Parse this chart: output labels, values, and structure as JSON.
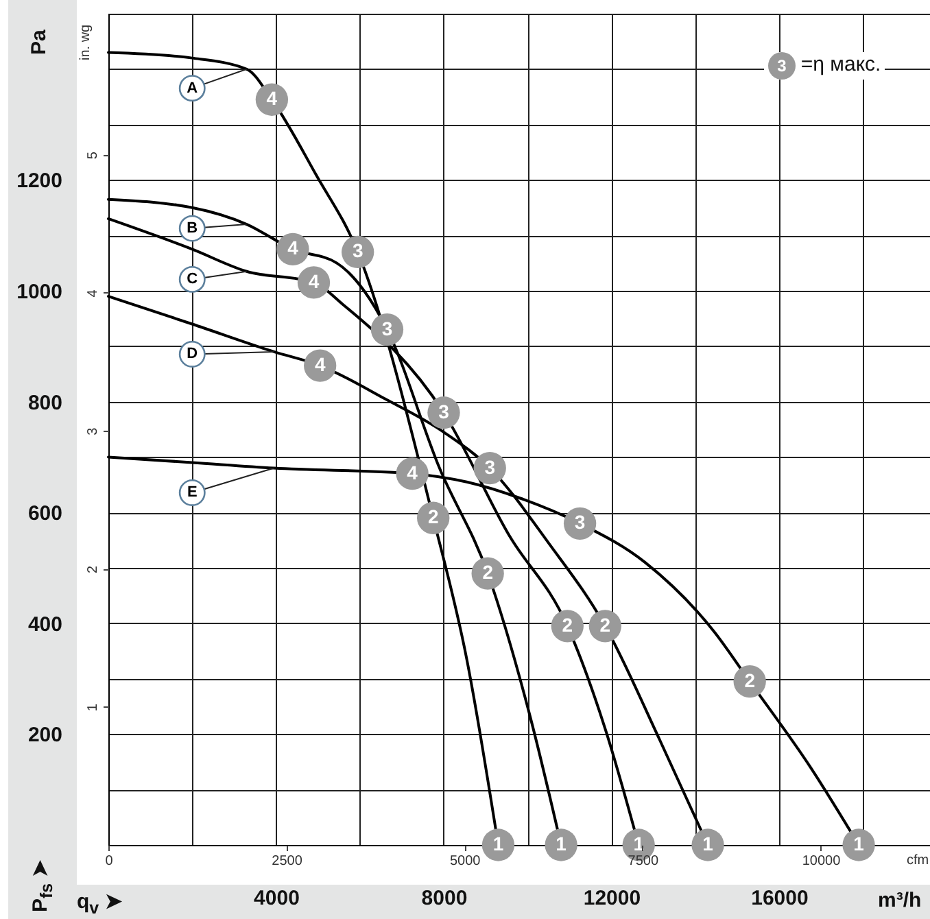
{
  "chart_data": {
    "type": "line",
    "xlabel": "q$_{v}$ ➤",
    "ylabel": "P$_{fs}$ ➤",
    "x2label": "cfm",
    "y2label": "in. wg",
    "xlim": [
      0,
      19600
    ],
    "ylim": [
      0,
      1500
    ],
    "x2lim": [
      0,
      11536
    ],
    "y2lim": [
      0,
      6.022
    ],
    "xticks": [
      {
        "value": 0,
        "label": null
      },
      {
        "value": 2000,
        "label": null
      },
      4000,
      {
        "value": 6000,
        "label": null
      },
      8000,
      {
        "value": 10000,
        "label": null
      },
      12000,
      {
        "value": 14000,
        "label": null
      },
      16000,
      {
        "value": 18000,
        "label": null
      }
    ],
    "yticks": [
      {
        "value": 0,
        "label": null
      },
      {
        "value": 100,
        "label": null
      },
      200,
      {
        "value": 300,
        "label": null
      },
      400,
      {
        "value": 500,
        "label": null
      },
      600,
      {
        "value": 700,
        "label": null
      },
      800,
      {
        "value": 900,
        "label": null
      },
      1000,
      {
        "value": 1100,
        "label": null
      },
      1200,
      {
        "value": 1300,
        "label": null
      },
      {
        "value": 1400,
        "label": null
      },
      {
        "value": 1500,
        "label": null
      }
    ],
    "x2ticks": [
      0,
      2500,
      5000,
      7500,
      10000
    ],
    "y2ticks": [
      1,
      2,
      3,
      4,
      5
    ],
    "grid": true,
    "marker": "none",
    "line_style": "solid",
    "series": [
      {
        "name": "A",
        "color": "#000000",
        "x": [
          0,
          2000,
          3300,
          3900,
          4950,
          5950,
          7750,
          8550,
          9300
        ],
        "values": [
          1430,
          1420,
          1400,
          1345,
          1210,
          1070,
          590,
          335,
          0
        ]
      },
      {
        "name": "B",
        "color": "#000000",
        "x": [
          0,
          2000,
          3300,
          4400,
          5450,
          6100,
          6650,
          7900,
          9050,
          10050,
          10800
        ],
        "values": [
          1165,
          1150,
          1120,
          1075,
          1050,
          1000,
          930,
          680,
          490,
          235,
          0
        ]
      },
      {
        "name": "C",
        "color": "#000000",
        "x": [
          0,
          2000,
          3300,
          4900,
          5600,
          8000,
          9550,
          10950,
          11850,
          12650
        ],
        "values": [
          1130,
          1075,
          1035,
          1015,
          975,
          780,
          560,
          395,
          210,
          0
        ]
      },
      {
        "name": "D",
        "color": "#000000",
        "x": [
          0,
          2000,
          3950,
          5050,
          6600,
          8000,
          9100,
          10500,
          11850,
          13150,
          14300
        ],
        "values": [
          990,
          940,
          890,
          865,
          805,
          745,
          680,
          545,
          395,
          190,
          0
        ]
      },
      {
        "name": "E",
        "color": "#000000",
        "x": [
          0,
          2000,
          3950,
          7250,
          8550,
          9850,
          11250,
          12800,
          14450,
          15300,
          16750,
          17900
        ],
        "values": [
          700,
          690,
          680,
          670,
          655,
          625,
          580,
          510,
          385,
          295,
          140,
          0
        ]
      }
    ],
    "annotations": [
      "3 =η макс.",
      "m³/h",
      "Pa",
      {
        "text": "4",
        "x": 3900,
        "y": 1345
      },
      {
        "text": "3",
        "x": 5950,
        "y": 1070
      },
      {
        "text": "2",
        "x": 7750,
        "y": 590
      },
      {
        "text": "1",
        "x": 9300,
        "y": 0
      },
      {
        "text": "4",
        "x": 4400,
        "y": 1075
      },
      {
        "text": "3",
        "x": 6650,
        "y": 930
      },
      {
        "text": "2",
        "x": 9050,
        "y": 490
      },
      {
        "text": "1",
        "x": 10800,
        "y": 0
      },
      {
        "text": "4",
        "x": 4900,
        "y": 1015
      },
      {
        "text": "3",
        "x": 8000,
        "y": 780
      },
      {
        "text": "2",
        "x": 10950,
        "y": 395
      },
      {
        "text": "1",
        "x": 12650,
        "y": 0
      },
      {
        "text": "4",
        "x": 5050,
        "y": 865
      },
      {
        "text": "3",
        "x": 9100,
        "y": 680
      },
      {
        "text": "2",
        "x": 11850,
        "y": 395
      },
      {
        "text": "1",
        "x": 14300,
        "y": 0
      },
      {
        "text": "4",
        "x": 7250,
        "y": 670
      },
      {
        "text": "3",
        "x": 11250,
        "y": 580
      },
      {
        "text": "2",
        "x": 15300,
        "y": 295
      },
      {
        "text": "1",
        "x": 17900,
        "y": 0
      }
    ]
  }
}
